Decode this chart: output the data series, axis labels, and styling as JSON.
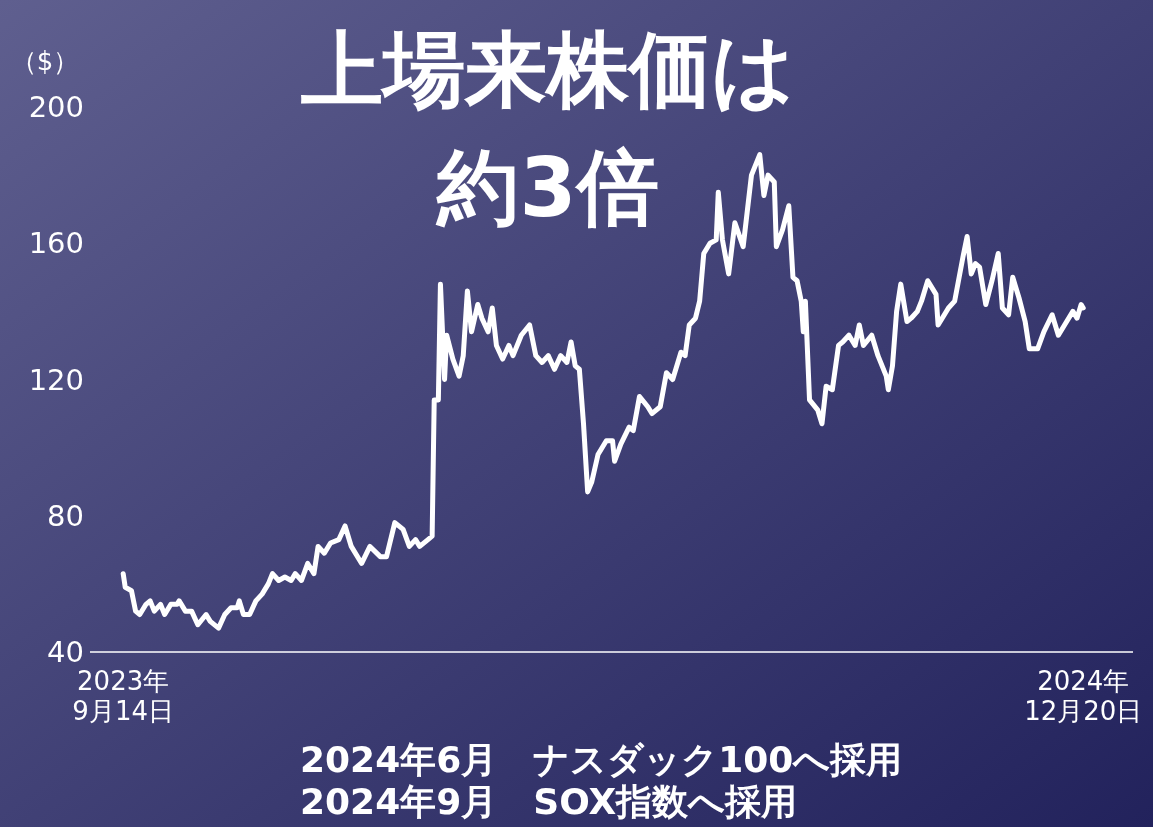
{
  "chart_data": {
    "type": "line",
    "title": "上場来株価は",
    "subtitle": "約3倍",
    "ylabel": "（$）",
    "x": [
      "2023-09-14",
      "2023-09-15",
      "2023-09-18",
      "2023-09-20",
      "2023-09-22",
      "2023-09-25",
      "2023-09-27",
      "2023-09-29",
      "2023-10-02",
      "2023-10-04",
      "2023-10-07",
      "2023-10-10",
      "2023-10-11",
      "2023-10-14",
      "2023-10-17",
      "2023-10-20",
      "2023-10-24",
      "2023-10-26",
      "2023-10-30",
      "2023-11-02",
      "2023-11-05",
      "2023-11-08",
      "2023-11-09",
      "2023-11-11",
      "2023-11-14",
      "2023-11-17",
      "2023-11-20",
      "2023-11-23",
      "2023-11-25",
      "2023-11-28",
      "2023-12-01",
      "2023-12-04",
      "2023-12-06",
      "2023-12-09",
      "2023-12-12",
      "2023-12-15",
      "2023-12-17",
      "2023-12-20",
      "2023-12-23",
      "2023-12-27",
      "2023-12-30",
      "2024-01-02",
      "2024-01-07",
      "2024-01-11",
      "2024-01-16",
      "2024-01-19",
      "2024-01-23",
      "2024-01-27",
      "2024-01-30",
      "2024-02-02",
      "2024-02-04",
      "2024-02-08",
      "2024-02-10",
      "2024-02-11",
      "2024-02-13",
      "2024-02-14",
      "2024-02-16",
      "2024-02-17",
      "2024-02-20",
      "2024-02-23",
      "2024-02-25",
      "2024-02-27",
      "2024-02-29",
      "2024-03-03",
      "2024-03-05",
      "2024-03-08",
      "2024-03-10",
      "2024-03-12",
      "2024-03-15",
      "2024-03-18",
      "2024-03-20",
      "2024-03-24",
      "2024-03-28",
      "2024-03-31",
      "2024-04-03",
      "2024-04-06",
      "2024-04-09",
      "2024-04-12",
      "2024-04-15",
      "2024-04-17",
      "2024-04-19",
      "2024-04-21",
      "2024-04-23",
      "2024-04-25",
      "2024-04-27",
      "2024-04-30",
      "2024-05-04",
      "2024-05-07",
      "2024-05-08",
      "2024-05-11",
      "2024-05-15",
      "2024-05-17",
      "2024-05-20",
      "2024-05-24",
      "2024-05-26",
      "2024-05-30",
      "2024-06-02",
      "2024-06-05",
      "2024-06-09",
      "2024-06-11",
      "2024-06-13",
      "2024-06-16",
      "2024-06-18",
      "2024-06-20",
      "2024-06-23",
      "2024-06-26",
      "2024-06-27",
      "2024-06-29",
      "2024-07-02",
      "2024-07-05",
      "2024-07-09",
      "2024-07-13",
      "2024-07-15",
      "2024-07-17",
      "2024-07-19",
      "2024-07-21",
      "2024-07-24",
      "2024-07-25",
      "2024-07-28",
      "2024-07-31",
      "2024-08-02",
      "2024-08-04",
      "2024-08-06",
      "2024-08-07",
      "2024-08-08",
      "2024-08-10",
      "2024-08-14",
      "2024-08-16",
      "2024-08-18",
      "2024-08-21",
      "2024-08-24",
      "2024-08-26",
      "2024-08-29",
      "2024-09-01",
      "2024-09-03",
      "2024-09-05",
      "2024-09-09",
      "2024-09-12",
      "2024-09-16",
      "2024-09-17",
      "2024-09-19",
      "2024-09-21",
      "2024-09-23",
      "2024-09-26",
      "2024-09-28",
      "2024-10-01",
      "2024-10-03",
      "2024-10-06",
      "2024-10-10",
      "2024-10-11",
      "2024-10-16",
      "2024-10-19",
      "2024-10-23",
      "2024-10-25",
      "2024-10-27",
      "2024-10-29",
      "2024-10-31",
      "2024-11-03",
      "2024-11-06",
      "2024-11-09",
      "2024-11-11",
      "2024-11-14",
      "2024-11-16",
      "2024-11-19",
      "2024-11-22",
      "2024-11-24",
      "2024-11-28",
      "2024-12-01",
      "2024-12-05",
      "2024-12-08",
      "2024-12-11",
      "2024-12-15",
      "2024-12-17",
      "2024-12-19",
      "2024-12-20"
    ],
    "series": [
      {
        "color": "#ffffff",
        "values": [
          63,
          59,
          58,
          52,
          51,
          54,
          55,
          52,
          54,
          51,
          54,
          54,
          55,
          52,
          52,
          48,
          51,
          49,
          47,
          51,
          53,
          53,
          55,
          51,
          51,
          55,
          57,
          60,
          63,
          61,
          62,
          61,
          63,
          61,
          66,
          63,
          71,
          69,
          72,
          73,
          77,
          71,
          66,
          71,
          68,
          68,
          78,
          76,
          71,
          73,
          71,
          73,
          74,
          114,
          114,
          148,
          120,
          133,
          126,
          121,
          127,
          146,
          134,
          142,
          138,
          134,
          141,
          130,
          126,
          130,
          127,
          133,
          136,
          127,
          125,
          127,
          123,
          127,
          125,
          131,
          124,
          123,
          107,
          87,
          90,
          98,
          102,
          102,
          96,
          101,
          106,
          105,
          115,
          112,
          110,
          112,
          122,
          120,
          128,
          127,
          136,
          138,
          143,
          157,
          160,
          161,
          175,
          161,
          151,
          166,
          159,
          180,
          183,
          186,
          174,
          180,
          178,
          159,
          164,
          171,
          150,
          149,
          143,
          134,
          143,
          114,
          111,
          107,
          118,
          117,
          130,
          131,
          133,
          130,
          136,
          130,
          133,
          127,
          121,
          117,
          124,
          140,
          148,
          137,
          138,
          140,
          143,
          149,
          145,
          136,
          141,
          143,
          156,
          162,
          151,
          154,
          153,
          142,
          149,
          157,
          141,
          139,
          150,
          144,
          137,
          129,
          129,
          134,
          139,
          133,
          136,
          140,
          138,
          142,
          141
        ]
      }
    ],
    "xlim": [
      "2023-08-29",
      "2025-01-13"
    ],
    "xticks": [
      {
        "value": "2023-09-14",
        "label": "2023年\n9月14日"
      },
      {
        "value": "2024-12-20",
        "label": "2024年\n12月20日"
      }
    ],
    "ylim": [
      40,
      200
    ],
    "yticks": [
      40,
      80,
      120,
      160,
      200
    ],
    "line_style": "solid",
    "marker": "none",
    "annotations": [
      "2024年6月　ナスダック100へ採用",
      "2024年9月　SOX指数へ採用"
    ]
  }
}
